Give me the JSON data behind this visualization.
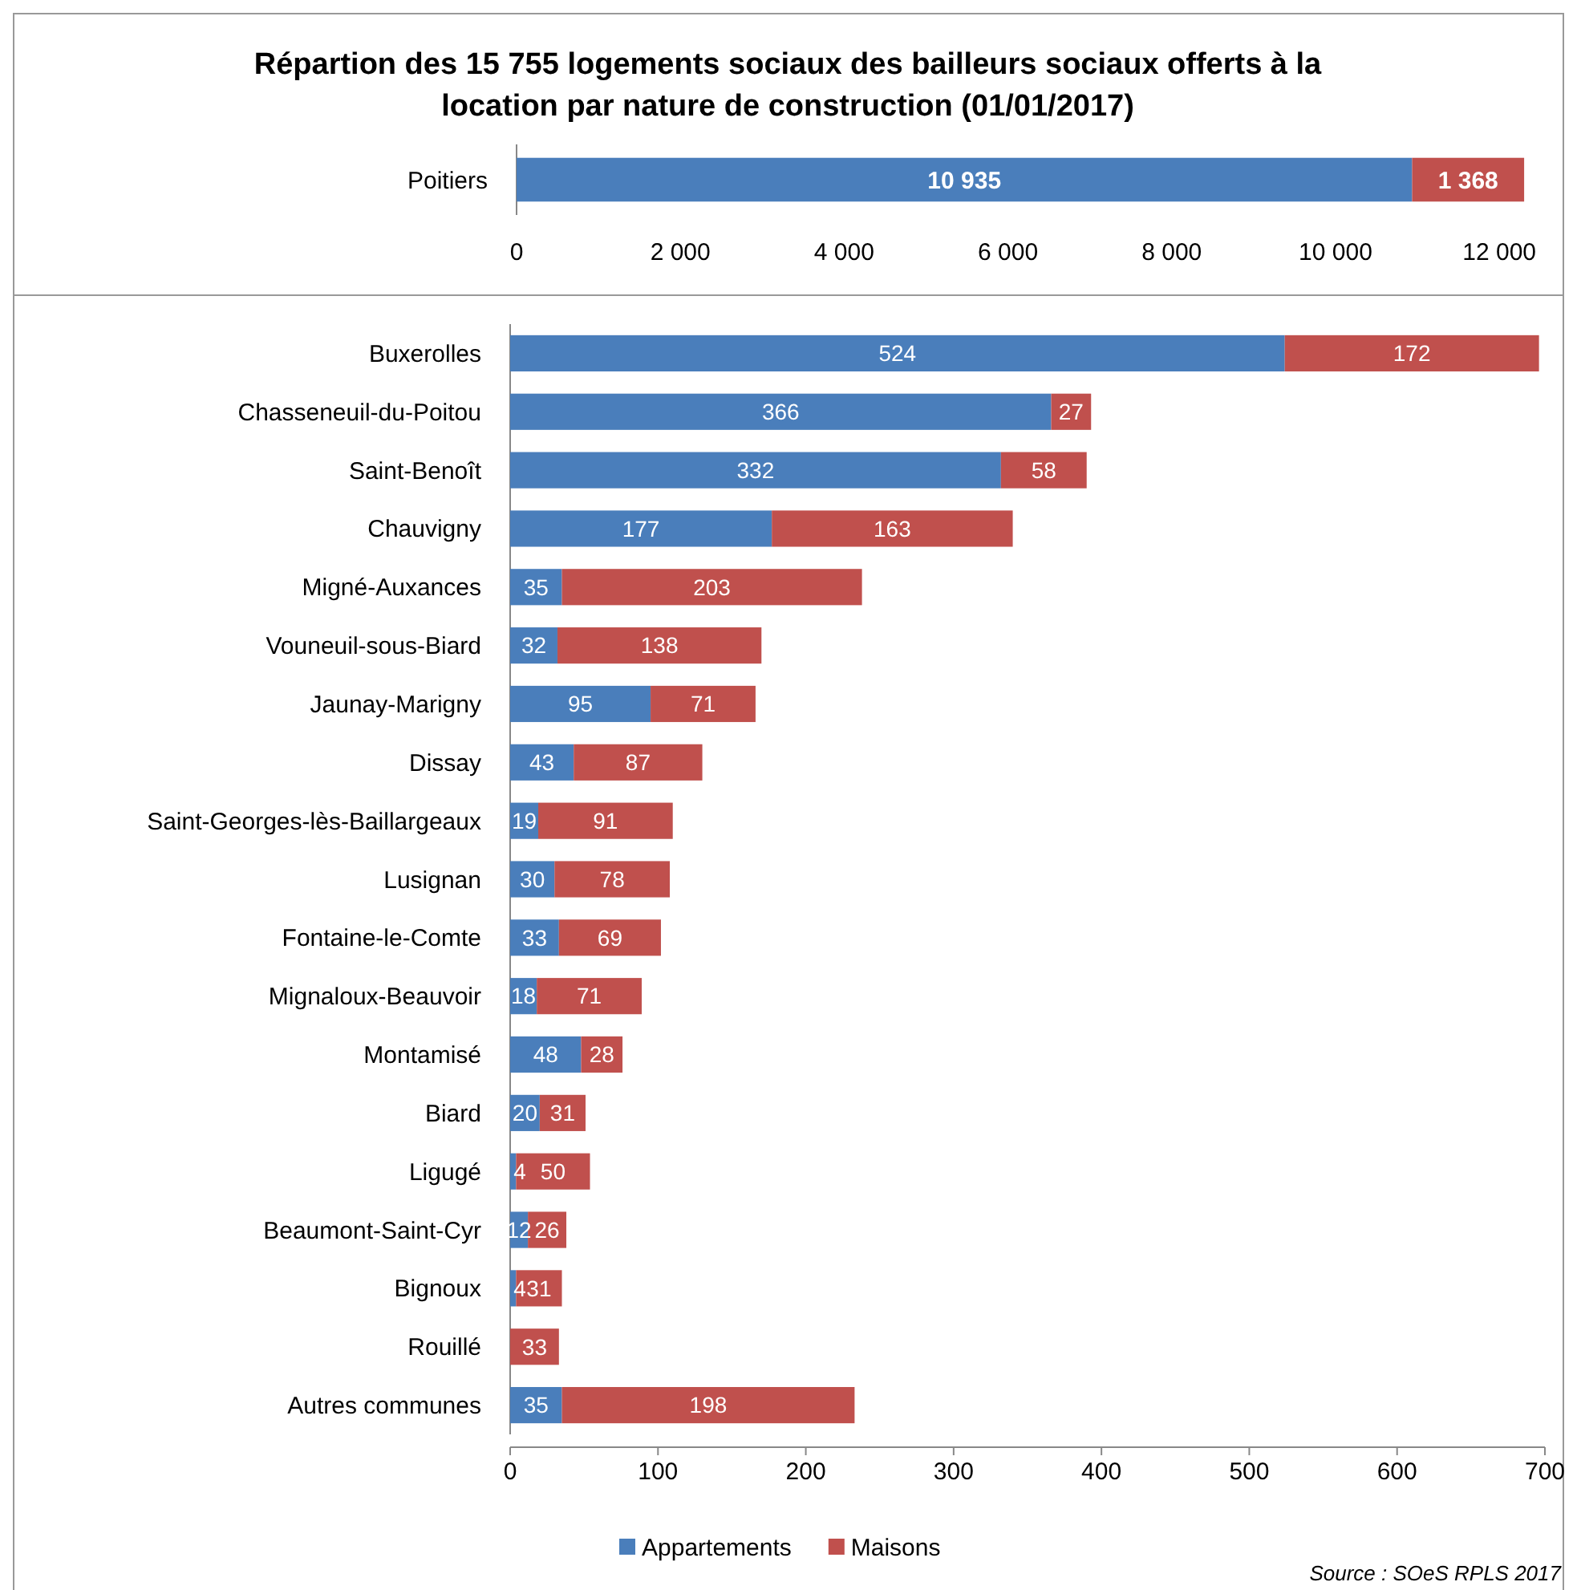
{
  "chart_data": [
    {
      "type": "bar",
      "orientation": "horizontal",
      "stacked": true,
      "title": "Répartion des 15 755  logements sociaux des bailleurs sociaux offerts à la location par nature de construction (01/01/2017)",
      "categories": [
        "Poitiers"
      ],
      "series": [
        {
          "color": "#4a7ebb",
          "values": [
            10935
          ],
          "value_labels": [
            "10 935"
          ]
        },
        {
          "color": "#c0504d",
          "values": [
            1368
          ],
          "value_labels": [
            "1 368"
          ]
        }
      ],
      "xlim": [
        0,
        12400
      ],
      "xticks": [
        0,
        {
          "value": 2000,
          "label": "2 000"
        },
        {
          "value": 4000,
          "label": "4 000"
        },
        {
          "value": 6000,
          "label": "6 000"
        },
        {
          "value": 8000,
          "label": "8 000"
        },
        {
          "value": 10000,
          "label": "10 000"
        },
        {
          "value": 12000,
          "label": "12 000"
        }
      ]
    },
    {
      "type": "bar",
      "orientation": "horizontal",
      "stacked": true,
      "data_labels": true,
      "legend": "bottom",
      "annotations": [
        "Source : SOeS RPLS 2017"
      ],
      "categories": [
        "Buxerolles",
        "Chasseneuil-du-Poitou",
        "Saint-Benoît",
        "Chauvigny",
        "Migné-Auxances",
        "Vouneuil-sous-Biard",
        "Jaunay-Marigny",
        "Dissay",
        "Saint-Georges-lès-Baillargeaux",
        "Lusignan",
        "Fontaine-le-Comte",
        "Mignaloux-Beauvoir",
        "Montamisé",
        "Biard",
        "Ligugé",
        "Beaumont-Saint-Cyr",
        "Bignoux",
        "Rouillé",
        "Autres communes"
      ],
      "series": [
        {
          "name": "Appartements",
          "color": "#4a7ebb",
          "values": [
            524,
            366,
            332,
            177,
            35,
            32,
            95,
            43,
            19,
            30,
            33,
            18,
            48,
            20,
            4,
            12,
            4,
            null,
            35
          ]
        },
        {
          "name": "Maisons",
          "color": "#c0504d",
          "values": [
            172,
            27,
            58,
            163,
            203,
            138,
            71,
            87,
            91,
            78,
            69,
            71,
            28,
            31,
            50,
            26,
            31,
            33,
            198
          ]
        }
      ],
      "xlim": [
        0,
        700
      ],
      "xticks": [
        0,
        100,
        200,
        300,
        400,
        500,
        600,
        700
      ]
    }
  ]
}
